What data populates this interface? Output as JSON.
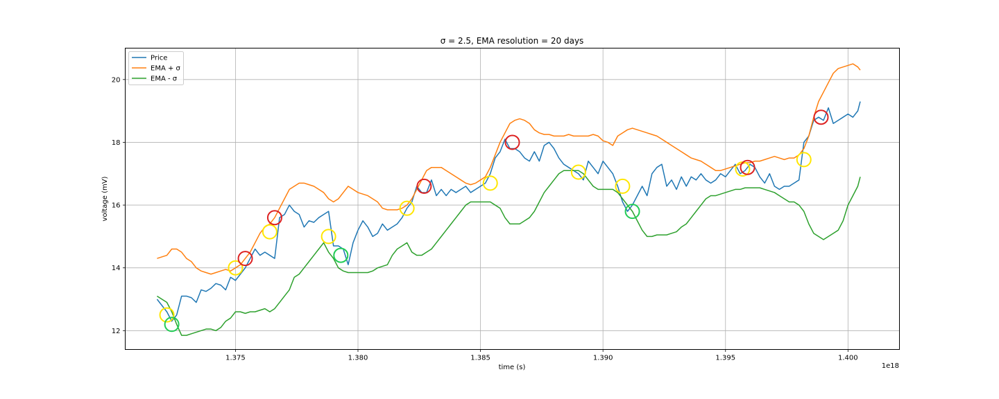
{
  "chart_data": {
    "type": "line",
    "title": "σ = 2.5, EMA resolution = 20 days",
    "xlabel": "time (s)",
    "ylabel": "voltage (mV)",
    "x_offset_label": "1e18",
    "xlim": [
      1.3705,
      1.4021
    ],
    "ylim": [
      11.4,
      21.0
    ],
    "xticks": [
      1.375,
      1.38,
      1.385,
      1.39,
      1.395,
      1.4
    ],
    "xtick_labels": [
      "1.375",
      "1.380",
      "1.385",
      "1.390",
      "1.395",
      "1.400"
    ],
    "yticks": [
      12,
      14,
      16,
      18,
      20
    ],
    "ytick_labels": [
      "12",
      "14",
      "16",
      "18",
      "20"
    ],
    "grid": true,
    "legend_position": "upper-left",
    "series": [
      {
        "name": "Price",
        "color": "#1f77b4",
        "x": [
          1.3718,
          1.3722,
          1.3724,
          1.3726,
          1.3728,
          1.373,
          1.3732,
          1.3734,
          1.3736,
          1.3738,
          1.374,
          1.3742,
          1.3744,
          1.3746,
          1.3748,
          1.375,
          1.3752,
          1.3754,
          1.3756,
          1.3758,
          1.376,
          1.3762,
          1.3764,
          1.3766,
          1.3768,
          1.377,
          1.3772,
          1.3774,
          1.3776,
          1.3778,
          1.378,
          1.3782,
          1.3784,
          1.3786,
          1.3788,
          1.379,
          1.3792,
          1.3794,
          1.3796,
          1.3798,
          1.38,
          1.3802,
          1.3804,
          1.3806,
          1.3808,
          1.381,
          1.3812,
          1.3814,
          1.3816,
          1.3818,
          1.382,
          1.3822,
          1.3824,
          1.3826,
          1.3828,
          1.383,
          1.3832,
          1.3834,
          1.3836,
          1.3838,
          1.384,
          1.3842,
          1.3844,
          1.3846,
          1.3848,
          1.385,
          1.3852,
          1.3854,
          1.3856,
          1.3858,
          1.386,
          1.3862,
          1.3864,
          1.3866,
          1.3868,
          1.387,
          1.3872,
          1.3874,
          1.3876,
          1.3878,
          1.388,
          1.3882,
          1.3884,
          1.3886,
          1.3888,
          1.389,
          1.3892,
          1.3894,
          1.3896,
          1.3898,
          1.39,
          1.3902,
          1.3904,
          1.3906,
          1.3908,
          1.391,
          1.3912,
          1.3914,
          1.3916,
          1.3918,
          1.392,
          1.3922,
          1.3924,
          1.3926,
          1.3928,
          1.393,
          1.3932,
          1.3934,
          1.3936,
          1.3938,
          1.394,
          1.3942,
          1.3944,
          1.3946,
          1.3948,
          1.395,
          1.3952,
          1.3954,
          1.3956,
          1.3958,
          1.396,
          1.3962,
          1.3964,
          1.3966,
          1.3968,
          1.397,
          1.3972,
          1.3974,
          1.3976,
          1.3978,
          1.398,
          1.3982,
          1.3984,
          1.3986,
          1.3988,
          1.399,
          1.3992,
          1.3994,
          1.3996,
          1.3998,
          1.4,
          1.4002,
          1.4004,
          1.4005
        ],
        "y": [
          13.0,
          12.6,
          12.3,
          12.5,
          13.1,
          13.1,
          13.05,
          12.9,
          13.3,
          13.25,
          13.35,
          13.5,
          13.45,
          13.3,
          13.7,
          13.6,
          13.8,
          14.0,
          14.3,
          14.6,
          14.4,
          14.5,
          14.4,
          14.3,
          15.6,
          15.7,
          16.0,
          15.8,
          15.7,
          15.3,
          15.5,
          15.45,
          15.6,
          15.7,
          15.8,
          14.7,
          14.7,
          14.6,
          14.1,
          14.8,
          15.2,
          15.5,
          15.3,
          15.0,
          15.1,
          15.4,
          15.2,
          15.3,
          15.4,
          15.6,
          15.9,
          16.1,
          16.6,
          16.4,
          16.4,
          16.8,
          16.3,
          16.5,
          16.3,
          16.5,
          16.4,
          16.5,
          16.6,
          16.4,
          16.5,
          16.6,
          16.7,
          17.0,
          17.5,
          17.7,
          18.1,
          17.8,
          17.8,
          17.7,
          17.5,
          17.4,
          17.7,
          17.4,
          17.9,
          18.0,
          17.8,
          17.5,
          17.3,
          17.2,
          17.1,
          17.0,
          16.8,
          17.4,
          17.2,
          17.0,
          17.4,
          17.2,
          17.0,
          16.6,
          16.1,
          15.8,
          16.0,
          16.3,
          16.6,
          16.3,
          17.0,
          17.2,
          17.3,
          16.6,
          16.8,
          16.5,
          16.9,
          16.6,
          16.9,
          16.8,
          17.0,
          16.8,
          16.7,
          16.8,
          17.0,
          16.9,
          17.1,
          17.3,
          17.0,
          17.1,
          17.3,
          17.2,
          16.9,
          16.7,
          17.0,
          16.6,
          16.5,
          16.6,
          16.6,
          16.7,
          16.8,
          18.0,
          18.2,
          18.7,
          18.8,
          18.7,
          19.1,
          18.6,
          18.7,
          18.8,
          18.9,
          18.8,
          19.0,
          19.3
        ],
        "linewidth": 1.5
      },
      {
        "name": "EMA + σ",
        "color": "#ff7f0e",
        "x": [
          1.3718,
          1.3722,
          1.3724,
          1.3726,
          1.3728,
          1.373,
          1.3732,
          1.3734,
          1.3736,
          1.3738,
          1.374,
          1.3742,
          1.3744,
          1.3746,
          1.3748,
          1.375,
          1.3752,
          1.3754,
          1.3756,
          1.3758,
          1.376,
          1.3762,
          1.3764,
          1.3766,
          1.3768,
          1.377,
          1.3772,
          1.3774,
          1.3776,
          1.3778,
          1.378,
          1.3782,
          1.3784,
          1.3786,
          1.3788,
          1.379,
          1.3792,
          1.3794,
          1.3796,
          1.3798,
          1.38,
          1.3802,
          1.3804,
          1.3806,
          1.3808,
          1.381,
          1.3812,
          1.3814,
          1.3816,
          1.3818,
          1.382,
          1.3822,
          1.3824,
          1.3826,
          1.3828,
          1.383,
          1.3832,
          1.3834,
          1.3836,
          1.3838,
          1.384,
          1.3842,
          1.3844,
          1.3846,
          1.3848,
          1.385,
          1.3852,
          1.3854,
          1.3856,
          1.3858,
          1.386,
          1.3862,
          1.3864,
          1.3866,
          1.3868,
          1.387,
          1.3872,
          1.3874,
          1.3876,
          1.3878,
          1.388,
          1.3882,
          1.3884,
          1.3886,
          1.3888,
          1.389,
          1.3892,
          1.3894,
          1.3896,
          1.3898,
          1.39,
          1.3902,
          1.3904,
          1.3906,
          1.3908,
          1.391,
          1.3912,
          1.3914,
          1.3916,
          1.3918,
          1.392,
          1.3922,
          1.3924,
          1.3926,
          1.3928,
          1.393,
          1.3932,
          1.3934,
          1.3936,
          1.3938,
          1.394,
          1.3942,
          1.3944,
          1.3946,
          1.3948,
          1.395,
          1.3952,
          1.3954,
          1.3956,
          1.3958,
          1.396,
          1.3962,
          1.3964,
          1.3966,
          1.3968,
          1.397,
          1.3972,
          1.3974,
          1.3976,
          1.3978,
          1.398,
          1.3982,
          1.3984,
          1.3986,
          1.3988,
          1.399,
          1.3992,
          1.3994,
          1.3996,
          1.3998,
          1.4,
          1.4002,
          1.4004,
          1.4005
        ],
        "y": [
          14.3,
          14.4,
          14.6,
          14.6,
          14.5,
          14.3,
          14.2,
          14.0,
          13.9,
          13.85,
          13.8,
          13.85,
          13.9,
          13.95,
          13.9,
          14.0,
          14.1,
          14.3,
          14.5,
          14.8,
          15.1,
          15.3,
          15.4,
          15.6,
          15.9,
          16.2,
          16.5,
          16.6,
          16.7,
          16.7,
          16.65,
          16.6,
          16.5,
          16.4,
          16.2,
          16.1,
          16.2,
          16.4,
          16.6,
          16.5,
          16.4,
          16.35,
          16.3,
          16.2,
          16.1,
          15.9,
          15.85,
          15.85,
          15.85,
          15.9,
          16.0,
          16.2,
          16.5,
          16.8,
          17.1,
          17.2,
          17.2,
          17.2,
          17.1,
          17.0,
          16.9,
          16.8,
          16.7,
          16.65,
          16.7,
          16.8,
          16.9,
          17.2,
          17.6,
          18.0,
          18.3,
          18.6,
          18.7,
          18.75,
          18.7,
          18.6,
          18.4,
          18.3,
          18.25,
          18.25,
          18.2,
          18.2,
          18.2,
          18.25,
          18.2,
          18.2,
          18.2,
          18.2,
          18.25,
          18.2,
          18.05,
          18.0,
          17.9,
          18.2,
          18.3,
          18.4,
          18.45,
          18.4,
          18.35,
          18.3,
          18.25,
          18.2,
          18.1,
          18.0,
          17.9,
          17.8,
          17.7,
          17.6,
          17.5,
          17.45,
          17.4,
          17.3,
          17.2,
          17.1,
          17.1,
          17.15,
          17.2,
          17.25,
          17.3,
          17.35,
          17.35,
          17.4,
          17.4,
          17.45,
          17.5,
          17.55,
          17.5,
          17.45,
          17.5,
          17.5,
          17.6,
          17.8,
          18.2,
          18.8,
          19.3,
          19.6,
          19.9,
          20.2,
          20.35,
          20.4,
          20.45,
          20.5,
          20.4,
          20.3
        ],
        "linewidth": 1.5
      },
      {
        "name": "EMA - σ",
        "color": "#2ca02c",
        "x": [
          1.3718,
          1.3722,
          1.3724,
          1.3726,
          1.3728,
          1.373,
          1.3732,
          1.3734,
          1.3736,
          1.3738,
          1.374,
          1.3742,
          1.3744,
          1.3746,
          1.3748,
          1.375,
          1.3752,
          1.3754,
          1.3756,
          1.3758,
          1.376,
          1.3762,
          1.3764,
          1.3766,
          1.3768,
          1.377,
          1.3772,
          1.3774,
          1.3776,
          1.3778,
          1.378,
          1.3782,
          1.3784,
          1.3786,
          1.3788,
          1.379,
          1.3792,
          1.3794,
          1.3796,
          1.3798,
          1.38,
          1.3802,
          1.3804,
          1.3806,
          1.3808,
          1.381,
          1.3812,
          1.3814,
          1.3816,
          1.3818,
          1.382,
          1.3822,
          1.3824,
          1.3826,
          1.3828,
          1.383,
          1.3832,
          1.3834,
          1.3836,
          1.3838,
          1.384,
          1.3842,
          1.3844,
          1.3846,
          1.3848,
          1.385,
          1.3852,
          1.3854,
          1.3856,
          1.3858,
          1.386,
          1.3862,
          1.3864,
          1.3866,
          1.3868,
          1.387,
          1.3872,
          1.3874,
          1.3876,
          1.3878,
          1.388,
          1.3882,
          1.3884,
          1.3886,
          1.3888,
          1.389,
          1.3892,
          1.3894,
          1.3896,
          1.3898,
          1.39,
          1.3902,
          1.3904,
          1.3906,
          1.3908,
          1.391,
          1.3912,
          1.3914,
          1.3916,
          1.3918,
          1.392,
          1.3922,
          1.3924,
          1.3926,
          1.3928,
          1.393,
          1.3932,
          1.3934,
          1.3936,
          1.3938,
          1.394,
          1.3942,
          1.3944,
          1.3946,
          1.3948,
          1.395,
          1.3952,
          1.3954,
          1.3956,
          1.3958,
          1.396,
          1.3962,
          1.3964,
          1.3966,
          1.3968,
          1.397,
          1.3972,
          1.3974,
          1.3976,
          1.3978,
          1.398,
          1.3982,
          1.3984,
          1.3986,
          1.3988,
          1.399,
          1.3992,
          1.3994,
          1.3996,
          1.3998,
          1.4,
          1.4002,
          1.4004,
          1.4005
        ],
        "y": [
          13.1,
          12.9,
          12.6,
          12.2,
          11.85,
          11.85,
          11.9,
          11.95,
          12.0,
          12.05,
          12.05,
          12.0,
          12.1,
          12.3,
          12.4,
          12.6,
          12.6,
          12.55,
          12.6,
          12.6,
          12.65,
          12.7,
          12.6,
          12.7,
          12.9,
          13.1,
          13.3,
          13.7,
          13.8,
          14.0,
          14.2,
          14.4,
          14.6,
          14.8,
          14.5,
          14.3,
          14.0,
          13.9,
          13.85,
          13.85,
          13.85,
          13.85,
          13.85,
          13.9,
          14.0,
          14.05,
          14.1,
          14.4,
          14.6,
          14.7,
          14.8,
          14.5,
          14.4,
          14.4,
          14.5,
          14.6,
          14.8,
          15.0,
          15.2,
          15.4,
          15.6,
          15.8,
          16.0,
          16.1,
          16.1,
          16.1,
          16.1,
          16.1,
          16.0,
          15.9,
          15.6,
          15.4,
          15.4,
          15.4,
          15.5,
          15.6,
          15.8,
          16.1,
          16.4,
          16.6,
          16.8,
          17.0,
          17.1,
          17.1,
          17.1,
          17.1,
          17.0,
          16.8,
          16.6,
          16.5,
          16.5,
          16.5,
          16.5,
          16.4,
          16.2,
          16.0,
          15.8,
          15.5,
          15.2,
          15.0,
          15.0,
          15.05,
          15.05,
          15.05,
          15.1,
          15.15,
          15.3,
          15.4,
          15.6,
          15.8,
          16.0,
          16.2,
          16.3,
          16.3,
          16.35,
          16.4,
          16.45,
          16.5,
          16.5,
          16.55,
          16.55,
          16.55,
          16.55,
          16.5,
          16.45,
          16.4,
          16.3,
          16.2,
          16.1,
          16.1,
          16.0,
          15.8,
          15.4,
          15.1,
          15.0,
          14.9,
          15.0,
          15.1,
          15.2,
          15.5,
          16.0,
          16.3,
          16.6,
          16.9
        ],
        "linewidth": 1.5
      }
    ],
    "markers": [
      {
        "color": "#ffe600",
        "x": 1.3722,
        "y": 12.5
      },
      {
        "color": "#22cc55",
        "x": 1.3724,
        "y": 12.2
      },
      {
        "color": "#ffe600",
        "x": 1.375,
        "y": 14.0
      },
      {
        "color": "#dd2222",
        "x": 1.3754,
        "y": 14.3
      },
      {
        "color": "#ffe600",
        "x": 1.3764,
        "y": 15.15
      },
      {
        "color": "#dd2222",
        "x": 1.3766,
        "y": 15.6
      },
      {
        "color": "#ffe600",
        "x": 1.3788,
        "y": 15.0
      },
      {
        "color": "#22cc55",
        "x": 1.3793,
        "y": 14.4
      },
      {
        "color": "#ffe600",
        "x": 1.382,
        "y": 15.9
      },
      {
        "color": "#dd2222",
        "x": 1.3827,
        "y": 16.6
      },
      {
        "color": "#ffe600",
        "x": 1.3854,
        "y": 16.7
      },
      {
        "color": "#dd2222",
        "x": 1.3863,
        "y": 18.0
      },
      {
        "color": "#ffe600",
        "x": 1.389,
        "y": 17.05
      },
      {
        "color": "#ffe600",
        "x": 1.3908,
        "y": 16.6
      },
      {
        "color": "#22cc55",
        "x": 1.3912,
        "y": 15.8
      },
      {
        "color": "#ffe600",
        "x": 1.3957,
        "y": 17.15
      },
      {
        "color": "#dd2222",
        "x": 1.3959,
        "y": 17.2
      },
      {
        "color": "#ffe600",
        "x": 1.3982,
        "y": 17.45
      },
      {
        "color": "#dd2222",
        "x": 1.3989,
        "y": 18.8
      }
    ]
  }
}
